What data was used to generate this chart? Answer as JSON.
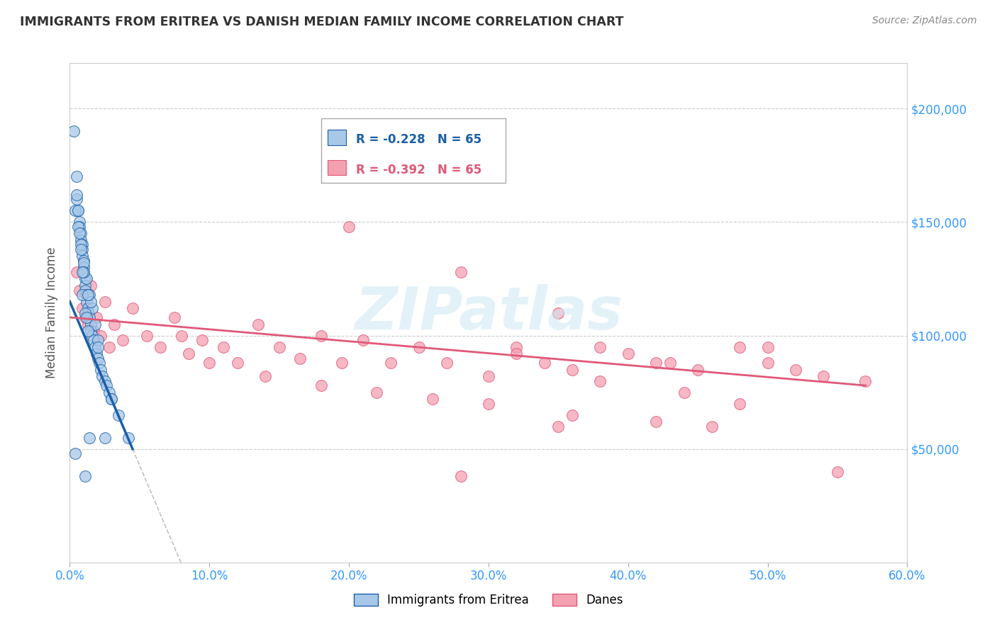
{
  "title": "IMMIGRANTS FROM ERITREA VS DANISH MEDIAN FAMILY INCOME CORRELATION CHART",
  "source": "Source: ZipAtlas.com",
  "ylabel": "Median Family Income",
  "xlabel_ticks": [
    "0.0%",
    "10.0%",
    "20.0%",
    "30.0%",
    "40.0%",
    "50.0%",
    "60.0%"
  ],
  "xlabel_vals": [
    0.0,
    10.0,
    20.0,
    30.0,
    40.0,
    50.0,
    60.0
  ],
  "ylabel_ticks": [
    50000,
    100000,
    150000,
    200000
  ],
  "ylabel_labels": [
    "$50,000",
    "$100,000",
    "$150,000",
    "$200,000"
  ],
  "ylim": [
    0,
    220000
  ],
  "xlim": [
    0,
    60
  ],
  "legend1_label": "Immigrants from Eritrea",
  "legend2_label": "Danes",
  "R1": "-0.228",
  "N1": "65",
  "R2": "-0.392",
  "N2": "65",
  "color_blue": "#a8c8e8",
  "color_pink": "#f4a0b0",
  "color_line_blue": "#1a5fa8",
  "color_line_pink": "#e05878",
  "color_dashed": "#c0c0c0",
  "watermark": "ZIPatlas",
  "blue_x": [
    0.3,
    0.5,
    0.5,
    0.6,
    0.7,
    0.7,
    0.8,
    0.8,
    0.9,
    0.9,
    0.9,
    1.0,
    1.0,
    1.0,
    1.1,
    1.1,
    1.1,
    1.2,
    1.2,
    1.3,
    1.3,
    1.4,
    1.5,
    1.5,
    1.6,
    1.7,
    1.8,
    1.9,
    2.0,
    2.1,
    2.2,
    2.3,
    2.5,
    2.6,
    2.8,
    3.0,
    3.5,
    4.2,
    0.4,
    0.6,
    0.8,
    1.0,
    1.2,
    1.4,
    1.6,
    1.8,
    2.0,
    0.9,
    1.1,
    1.3,
    0.7,
    0.8,
    1.0,
    1.5,
    2.0,
    3.0,
    1.2,
    1.3,
    0.5,
    0.6,
    0.9,
    1.4,
    2.5,
    0.4,
    1.1
  ],
  "blue_y": [
    190000,
    170000,
    160000,
    155000,
    150000,
    148000,
    145000,
    142000,
    140000,
    138000,
    135000,
    133000,
    130000,
    128000,
    125000,
    122000,
    120000,
    118000,
    115000,
    112000,
    110000,
    108000,
    105000,
    102000,
    100000,
    98000,
    95000,
    92000,
    90000,
    88000,
    85000,
    82000,
    80000,
    78000,
    75000,
    72000,
    65000,
    55000,
    155000,
    148000,
    140000,
    132000,
    125000,
    118000,
    112000,
    105000,
    98000,
    118000,
    110000,
    102000,
    145000,
    138000,
    128000,
    115000,
    95000,
    72000,
    108000,
    118000,
    162000,
    155000,
    128000,
    55000,
    55000,
    48000,
    38000
  ],
  "pink_x": [
    0.5,
    0.7,
    0.9,
    1.1,
    1.3,
    1.5,
    1.7,
    1.9,
    2.2,
    2.5,
    2.8,
    3.2,
    3.8,
    4.5,
    5.5,
    6.5,
    7.5,
    8.5,
    9.5,
    11.0,
    12.0,
    13.5,
    15.0,
    16.5,
    18.0,
    19.5,
    21.0,
    23.0,
    25.0,
    27.0,
    30.0,
    32.0,
    34.0,
    36.0,
    38.0,
    40.0,
    42.0,
    45.0,
    48.0,
    50.0,
    52.0,
    54.0,
    57.0,
    8.0,
    10.0,
    14.0,
    18.0,
    22.0,
    26.0,
    30.0,
    36.0,
    42.0,
    46.0,
    20.0,
    28.0,
    35.0,
    43.0,
    48.0,
    55.0,
    38.0,
    32.0,
    44.0,
    50.0,
    35.0,
    28.0
  ],
  "pink_y": [
    128000,
    120000,
    112000,
    108000,
    105000,
    122000,
    102000,
    108000,
    100000,
    115000,
    95000,
    105000,
    98000,
    112000,
    100000,
    95000,
    108000,
    92000,
    98000,
    95000,
    88000,
    105000,
    95000,
    90000,
    100000,
    88000,
    98000,
    88000,
    95000,
    88000,
    82000,
    95000,
    88000,
    85000,
    95000,
    92000,
    88000,
    85000,
    95000,
    88000,
    85000,
    82000,
    80000,
    100000,
    88000,
    82000,
    78000,
    75000,
    72000,
    70000,
    65000,
    62000,
    60000,
    148000,
    128000,
    110000,
    88000,
    70000,
    40000,
    80000,
    92000,
    75000,
    95000,
    60000,
    38000
  ]
}
